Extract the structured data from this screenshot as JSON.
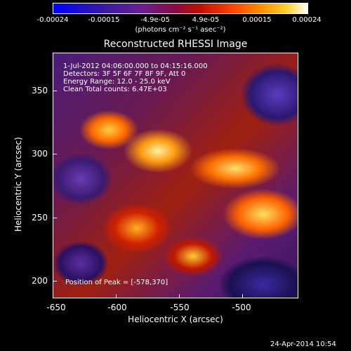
{
  "colorbar": {
    "ticks": [
      "-0.00024",
      "-0.00015",
      "-4.9e-05",
      "4.9e-05",
      "0.00015",
      "0.00024"
    ],
    "units_label": "(photons cm⁻² s⁻¹ asec⁻²)"
  },
  "plot": {
    "title": "Reconstructed RHESSI Image",
    "xlabel": "Heliocentric X (arcsec)",
    "ylabel": "Heliocentric Y (arcsec)",
    "xticks": [
      "-650",
      "-600",
      "-550",
      "-500"
    ],
    "yticks": [
      "350",
      "300",
      "250",
      "200"
    ],
    "info_lines": [
      "1-Jul-2012 04:06:00.000 to 04:15:16.000",
      "Detectors: 3F 5F 6F 7F 8F 9F, Att 0",
      "Energy Range: 12.0 - 25.0 keV",
      "Clean    Total counts: 6.47E+03"
    ],
    "peak_text": "Position of Peak = [-578,370]"
  },
  "footer": {
    "date": "24-Apr-2014 10:54"
  },
  "colors": {
    "background": "#000000",
    "foreground": "#ffffff"
  }
}
